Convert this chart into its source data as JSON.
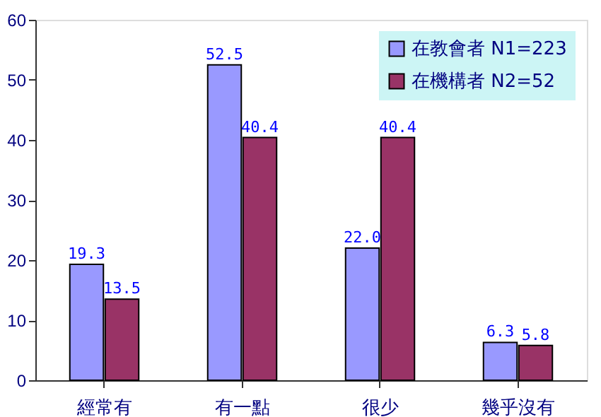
{
  "chart_data": {
    "type": "bar",
    "categories": [
      "經常有",
      "有一點",
      "很少",
      "幾乎沒有"
    ],
    "series": [
      {
        "name": "在教會者 N1=223",
        "color": "#9999ff",
        "values": [
          19.3,
          52.5,
          22.0,
          6.3
        ],
        "value_labels": [
          "19.3",
          "52.5",
          "22.0",
          "6.3"
        ]
      },
      {
        "name": "在機構者 N2=52",
        "color": "#993366",
        "values": [
          13.5,
          40.4,
          40.4,
          5.8
        ],
        "value_labels": [
          "13.5",
          "40.4",
          "40.4",
          "5.8"
        ]
      }
    ],
    "ylim": [
      0,
      60
    ],
    "yticks": [
      0,
      10,
      20,
      30,
      40,
      50,
      60
    ],
    "grid": false,
    "legend": "top right"
  }
}
